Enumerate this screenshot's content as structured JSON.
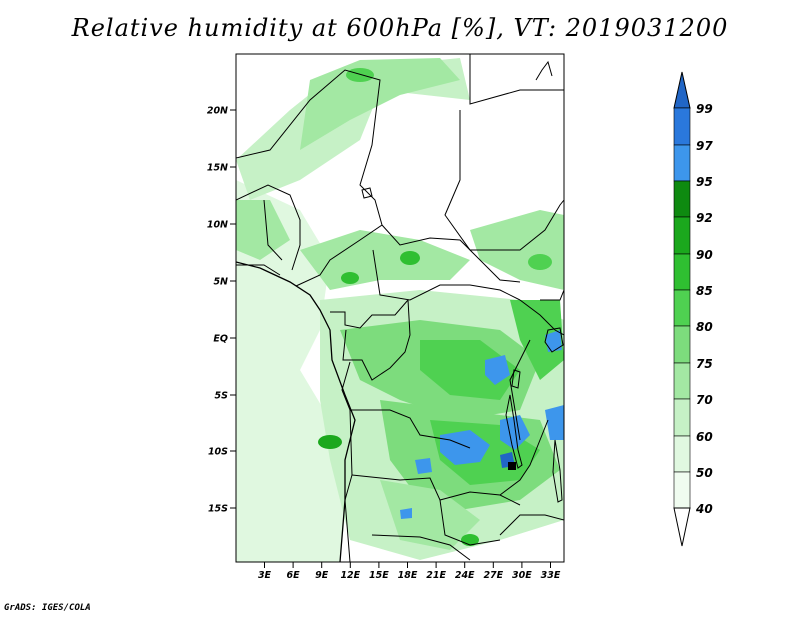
{
  "title": "Relative humidity at 600hPa [%], VT: 2019031200",
  "credit": "GrADS: IGES/COLA",
  "map": {
    "lat_labels": [
      "20N",
      "15N",
      "10N",
      "5N",
      "EQ",
      "5S",
      "10S",
      "15S"
    ],
    "lon_labels": [
      "3E",
      "6E",
      "9E",
      "12E",
      "15E",
      "18E",
      "21E",
      "24E",
      "27E",
      "30E",
      "33E"
    ]
  },
  "colorbar": {
    "labels": [
      "99",
      "97",
      "95",
      "92",
      "90",
      "85",
      "80",
      "75",
      "70",
      "60",
      "50",
      "40"
    ],
    "colors": {
      "above_99": "#2166c6",
      "97_99": "#2a78dc",
      "95_97": "#3d96ec",
      "92_95": "#0e8a10",
      "90_92": "#1ba81d",
      "85_90": "#2fbf31",
      "80_85": "#4fd151",
      "75_80": "#7ddc7d",
      "70_75": "#a3e8a3",
      "60_70": "#c6f1c6",
      "50_60": "#e0f8e0",
      "40_50": "#f0fcf0",
      "below_40": "#ffffff"
    }
  }
}
